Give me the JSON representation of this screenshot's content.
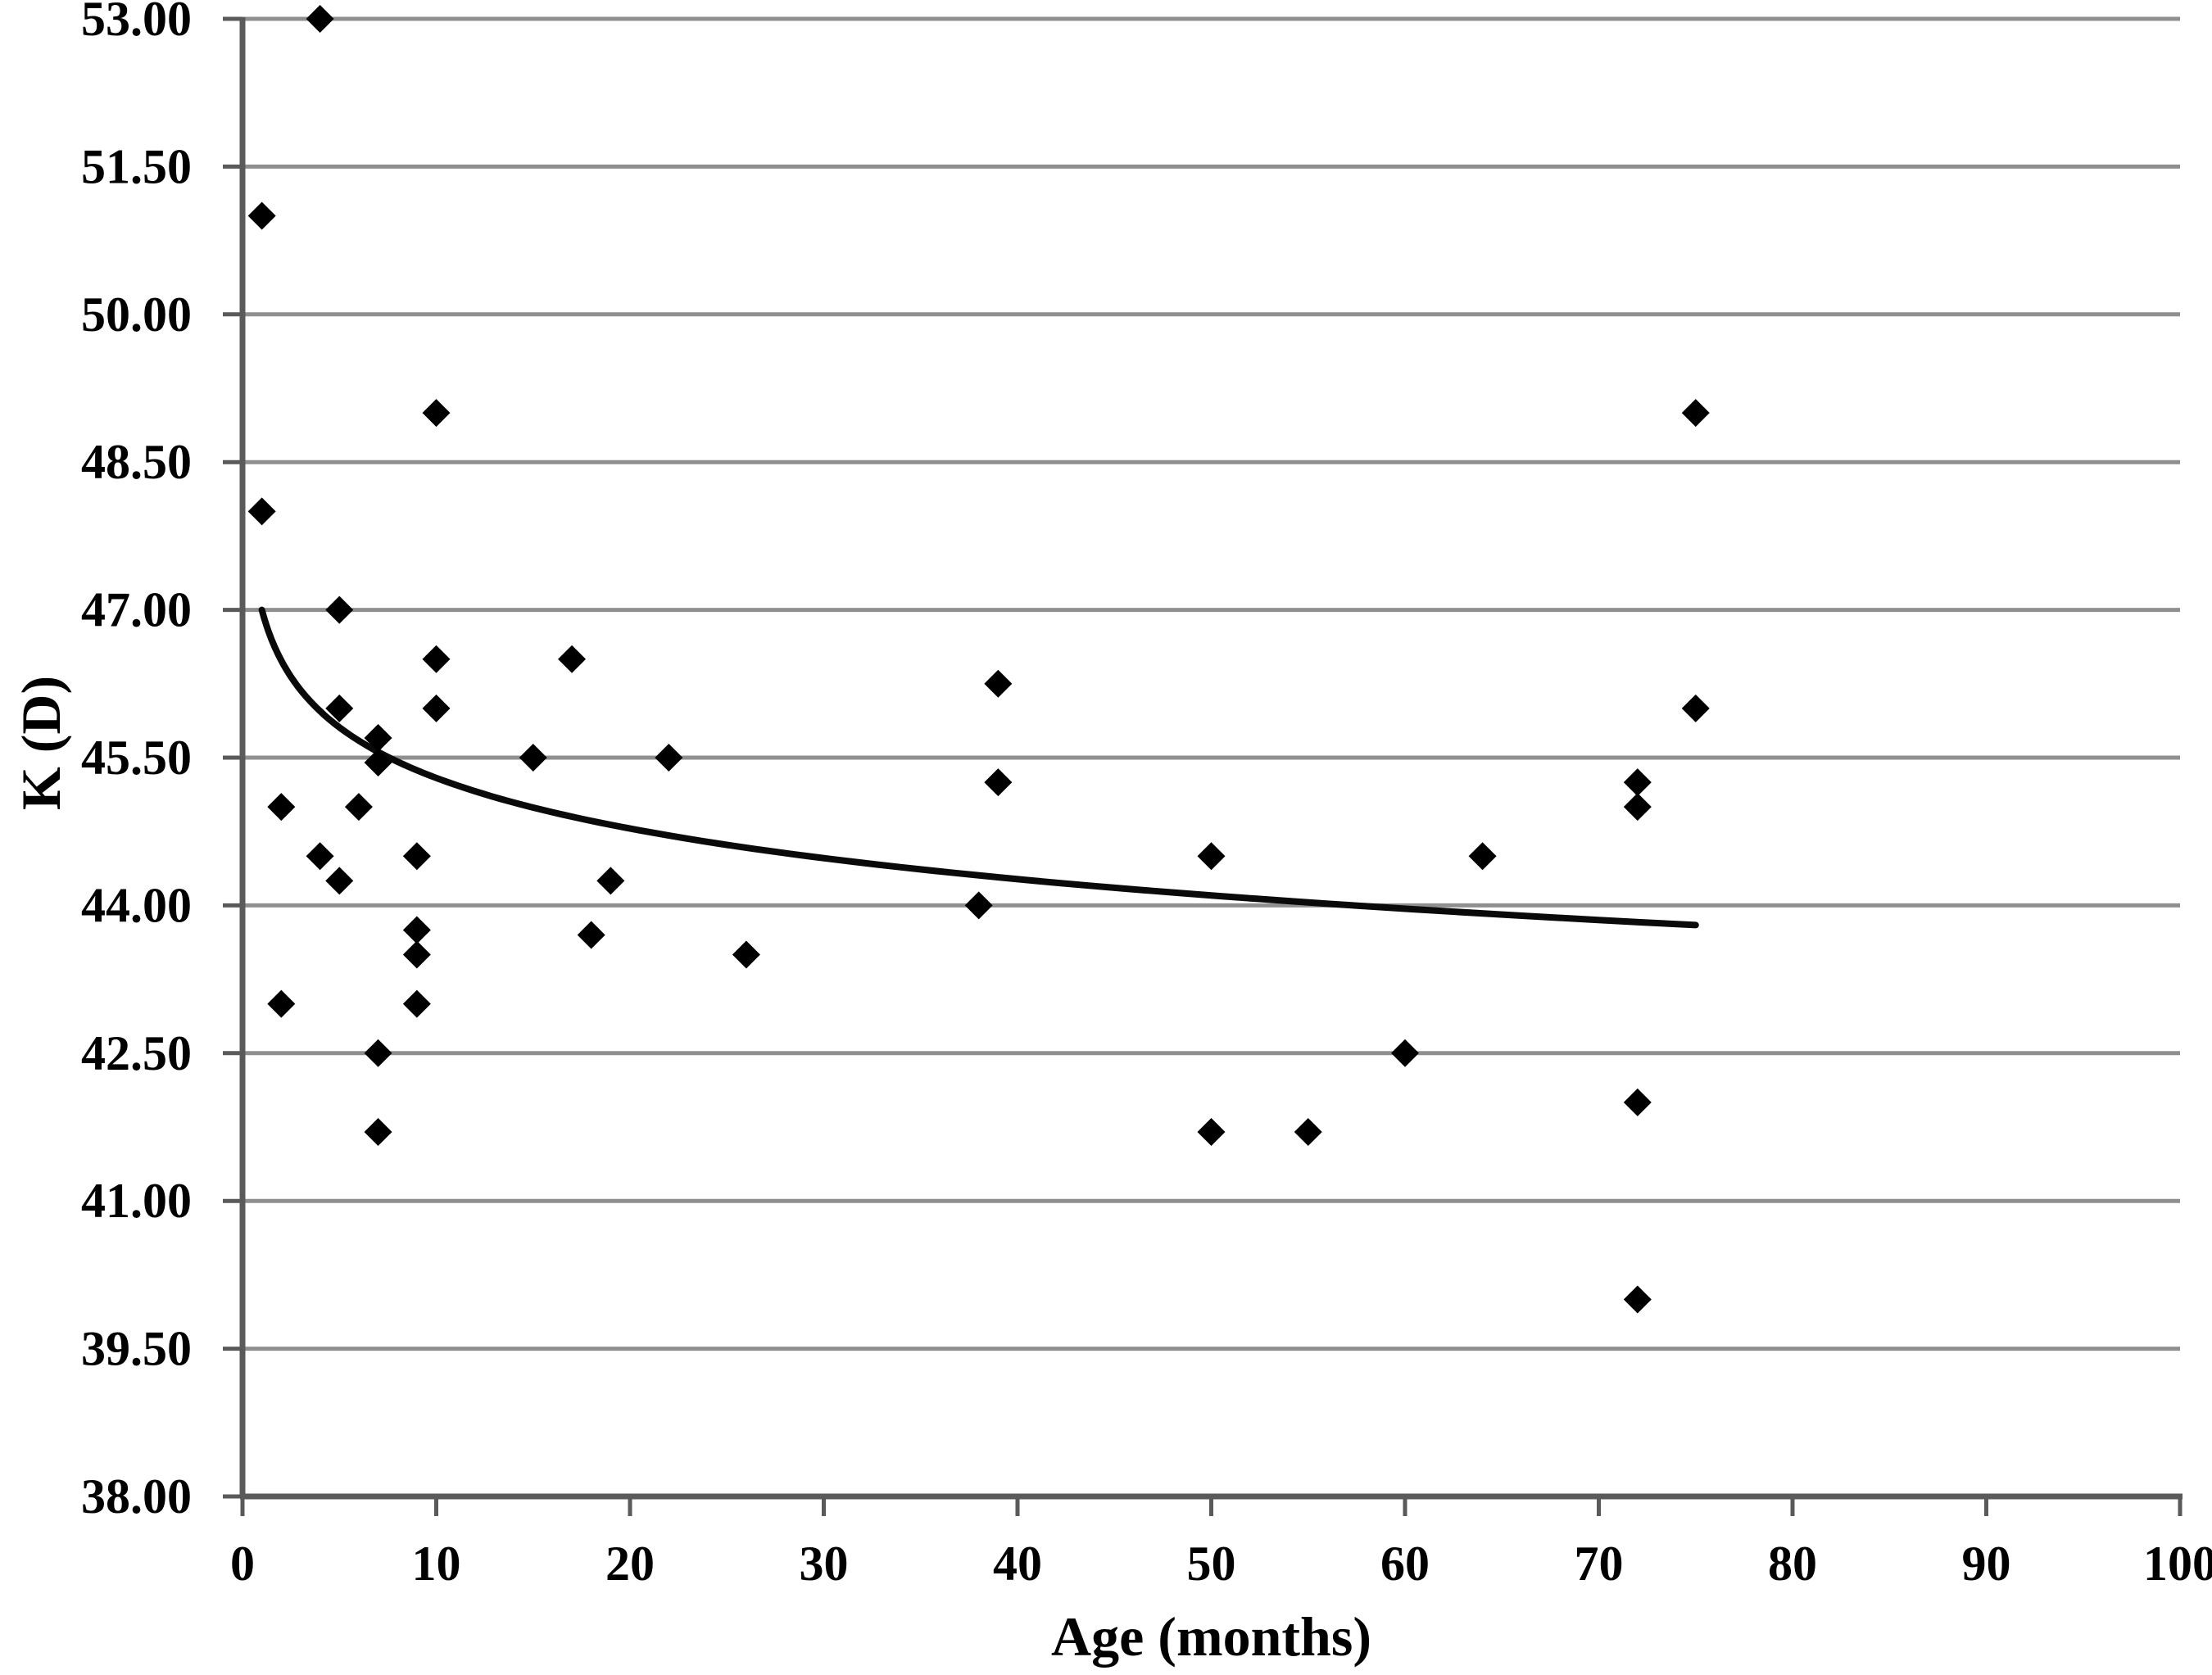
{
  "figure": {
    "background": "#ffffff"
  },
  "chart_data": {
    "type": "scatter",
    "title": "",
    "xlabel": "Age (months)",
    "ylabel": "K (D)",
    "xlim": [
      0,
      100
    ],
    "ylim": [
      38,
      53
    ],
    "x_ticks": [
      0,
      10,
      20,
      30,
      40,
      50,
      60,
      70,
      80,
      90,
      100
    ],
    "x_tick_labels": [
      "0",
      "10",
      "20",
      "30",
      "40",
      "50",
      "60",
      "70",
      "80",
      "90",
      "100"
    ],
    "y_ticks": [
      38.0,
      39.5,
      41.0,
      42.5,
      44.0,
      45.5,
      47.0,
      48.5,
      50.0,
      51.5,
      53.0
    ],
    "y_tick_labels": [
      "38.00",
      "39.50",
      "41.00",
      "42.50",
      "44.00",
      "45.50",
      "47.00",
      "48.50",
      "50.00",
      "51.50",
      "53.00"
    ],
    "grid": "horizontal",
    "legend": "none",
    "marker": "diamond",
    "marker_color": "#000000",
    "gridline_color": "#8f8f8f",
    "axis_color": "#5a5a5a",
    "points": [
      [
        4,
        53.0
      ],
      [
        1,
        51.0
      ],
      [
        10,
        49.0
      ],
      [
        75,
        49.0
      ],
      [
        1,
        48.0
      ],
      [
        5,
        47.0
      ],
      [
        10,
        46.5
      ],
      [
        17,
        46.5
      ],
      [
        39,
        46.25
      ],
      [
        5,
        46.0
      ],
      [
        10,
        46.0
      ],
      [
        75,
        46.0
      ],
      [
        7,
        45.7
      ],
      [
        7,
        45.45
      ],
      [
        15,
        45.5
      ],
      [
        22,
        45.5
      ],
      [
        39,
        45.25
      ],
      [
        72,
        45.25
      ],
      [
        2,
        45.0
      ],
      [
        6,
        45.0
      ],
      [
        72,
        45.0
      ],
      [
        4,
        44.5
      ],
      [
        9,
        44.5
      ],
      [
        50,
        44.5
      ],
      [
        64,
        44.5
      ],
      [
        5,
        44.25
      ],
      [
        19,
        44.25
      ],
      [
        38,
        44.0
      ],
      [
        9,
        43.75
      ],
      [
        18,
        43.7
      ],
      [
        9,
        43.5
      ],
      [
        26,
        43.5
      ],
      [
        2,
        43.0
      ],
      [
        9,
        43.0
      ],
      [
        7,
        42.5
      ],
      [
        60,
        42.5
      ],
      [
        72,
        42.0
      ],
      [
        7,
        41.7
      ],
      [
        50,
        41.7
      ],
      [
        55,
        41.7
      ],
      [
        72,
        40.0
      ]
    ],
    "trendline": {
      "type": "logarithmic",
      "intercept": 47.0,
      "ln_coefficient": -0.741,
      "x_start": 1,
      "x_end": 75,
      "color": "#0a0a0a"
    }
  }
}
